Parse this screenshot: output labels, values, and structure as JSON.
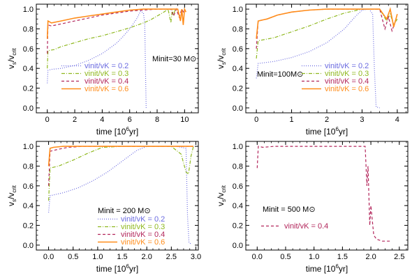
{
  "colors": {
    "v02": "#6a6ae0",
    "v03": "#8fb81f",
    "v04": "#b2245a",
    "v06": "#ff8c1a"
  },
  "chart_data": [
    {
      "type": "line",
      "ylabel": "vs/vcrit",
      "ylabel_main": "v",
      "ylabel_sub1": "s",
      "ylabel_div": "/v",
      "ylabel_sub2": "crit",
      "xlabel": "time [10^6yr]",
      "xlabel_pre": "time [10",
      "xlabel_sup": "6",
      "xlabel_post": "yr]",
      "xlim": [
        -0.8,
        11.0
      ],
      "ylim": [
        -0.05,
        1.05
      ],
      "xticks": [
        0,
        2,
        4,
        6,
        8,
        10
      ],
      "yticks": [
        0.0,
        0.2,
        0.4,
        0.6,
        0.8,
        1.0
      ],
      "mass_label": "Minit=30 M⊙",
      "series": [
        {
          "name": "vinit/vK = 0.2",
          "color_key": "v02",
          "dash": "dot",
          "x": [
            0,
            0.05,
            0.3,
            1.0,
            2.0,
            3.0,
            4.0,
            5.0,
            5.5,
            6.0,
            6.5,
            6.8,
            7.0,
            7.1,
            7.15,
            7.2
          ],
          "y": [
            0.25,
            0.38,
            0.39,
            0.4,
            0.43,
            0.48,
            0.55,
            0.65,
            0.72,
            0.8,
            0.9,
            0.98,
            0.96,
            0.85,
            0.4,
            0.0
          ]
        },
        {
          "name": "vinit/vK = 0.3",
          "color_key": "v03",
          "dash": "dashdot",
          "x": [
            0,
            0.05,
            0.5,
            1.0,
            2.0,
            3.0,
            4.0,
            5.0,
            6.0,
            7.0,
            7.5,
            8.0,
            8.5,
            8.8,
            9.0,
            9.1,
            9.2,
            9.3
          ],
          "y": [
            0.4,
            0.58,
            0.59,
            0.62,
            0.66,
            0.7,
            0.73,
            0.77,
            0.81,
            0.86,
            0.89,
            0.93,
            0.97,
            1.0,
            0.86,
            0.99,
            0.93,
            1.0
          ]
        },
        {
          "name": "vinit/vK = 0.4",
          "color_key": "v04",
          "dash": "dash",
          "x": [
            0,
            0.05,
            0.3,
            1.0,
            2.0,
            3.0,
            4.0,
            5.0,
            6.0,
            7.0,
            8.0,
            9.0,
            9.2,
            9.4,
            9.6,
            9.8,
            10.0
          ],
          "y": [
            0.55,
            0.84,
            0.83,
            0.85,
            0.88,
            0.91,
            0.94,
            0.96,
            0.98,
            0.99,
            1.0,
            1.0,
            0.93,
            1.0,
            0.92,
            1.0,
            0.95
          ]
        },
        {
          "name": "vinit/vK = 0.6",
          "color_key": "v06",
          "dash": "solid",
          "x": [
            0,
            0.05,
            0.3,
            1.0,
            2.0,
            3.0,
            4.0,
            5.0,
            6.0,
            7.0,
            8.0,
            9.0,
            9.5,
            9.7,
            9.8,
            9.9,
            10.0,
            10.1
          ],
          "y": [
            0.7,
            0.88,
            0.86,
            0.88,
            0.91,
            0.93,
            0.95,
            0.97,
            0.99,
            1.0,
            1.0,
            1.0,
            1.0,
            0.88,
            1.0,
            0.84,
            1.0,
            0.97
          ]
        }
      ]
    },
    {
      "type": "line",
      "ylabel": "vs/vcrit",
      "ylabel_main": "v",
      "ylabel_sub1": "s",
      "ylabel_div": "/v",
      "ylabel_sub2": "crit",
      "xlabel": "time [10^6yr]",
      "xlabel_pre": "time [10",
      "xlabel_sup": "6",
      "xlabel_post": "yr]",
      "xlim": [
        -0.3,
        4.3
      ],
      "ylim": [
        -0.05,
        1.05
      ],
      "xticks": [
        0,
        1,
        2,
        3,
        4
      ],
      "yticks": [
        0.0,
        0.2,
        0.4,
        0.6,
        0.8,
        1.0
      ],
      "mass_label": "Minit=100M⊙",
      "series": [
        {
          "name": "vinit/vK = 0.2",
          "color_key": "v02",
          "dash": "dot",
          "x": [
            0,
            0.05,
            0.5,
            1.0,
            1.5,
            2.0,
            2.5,
            2.8,
            3.0,
            3.2,
            3.3,
            3.35,
            3.4,
            3.5
          ],
          "y": [
            0.3,
            0.45,
            0.47,
            0.51,
            0.57,
            0.66,
            0.8,
            0.92,
            0.99,
            1.0,
            0.95,
            0.4,
            0.01,
            0.0
          ]
        },
        {
          "name": "vinit/vK = 0.3",
          "color_key": "v03",
          "dash": "dashdot",
          "x": [
            0,
            0.05,
            0.5,
            1.0,
            1.5,
            2.0,
            2.5,
            3.0,
            3.5,
            3.7,
            3.8,
            3.9,
            4.0
          ],
          "y": [
            0.5,
            0.68,
            0.71,
            0.77,
            0.83,
            0.9,
            0.96,
            1.0,
            1.0,
            0.88,
            0.95,
            0.84,
            0.9
          ]
        },
        {
          "name": "vinit/vK = 0.4",
          "color_key": "v04",
          "dash": "dash",
          "x": [
            0,
            0.05,
            0.3,
            0.6,
            1.0,
            1.5,
            2.0,
            2.5,
            3.0,
            3.5,
            3.65,
            3.75,
            3.85,
            3.95
          ],
          "y": [
            0.6,
            0.88,
            0.9,
            0.94,
            0.97,
            0.99,
            1.0,
            1.0,
            1.0,
            1.0,
            0.8,
            0.92,
            0.78,
            0.88
          ]
        },
        {
          "name": "vinit/vK = 0.6",
          "color_key": "v06",
          "dash": "solid",
          "x": [
            0,
            0.05,
            0.3,
            0.6,
            1.0,
            1.5,
            2.0,
            2.5,
            3.0,
            3.5,
            3.7,
            3.8,
            3.9,
            4.0
          ],
          "y": [
            0.7,
            0.88,
            0.9,
            0.94,
            0.97,
            0.99,
            1.0,
            1.0,
            1.0,
            1.0,
            0.9,
            1.0,
            0.82,
            0.95
          ]
        }
      ]
    },
    {
      "type": "line",
      "ylabel": "vs/vcrit",
      "ylabel_main": "v",
      "ylabel_sub1": "s",
      "ylabel_div": "/v",
      "ylabel_sub2": "crit",
      "xlabel": "time [10^6yr]",
      "xlabel_pre": "time [10",
      "xlabel_sup": "6",
      "xlabel_post": "yr]",
      "xlim": [
        -0.25,
        3.05
      ],
      "ylim": [
        -0.05,
        1.05
      ],
      "xticks": [
        0.0,
        0.5,
        1.0,
        1.5,
        2.0,
        2.5,
        3.0
      ],
      "yticks": [
        0.0,
        0.2,
        0.4,
        0.6,
        0.8,
        1.0
      ],
      "mass_label": "Minit = 200 M⊙",
      "series": [
        {
          "name": "vinit/vK = 0.2",
          "color_key": "v02",
          "dash": "dot",
          "x": [
            0,
            0.03,
            0.3,
            0.6,
            0.9,
            1.2,
            1.5,
            1.8,
            2.0,
            2.3,
            2.6,
            2.8,
            2.83,
            2.86,
            2.9
          ],
          "y": [
            0.33,
            0.5,
            0.53,
            0.58,
            0.65,
            0.74,
            0.85,
            0.96,
            1.0,
            1.0,
            1.0,
            0.98,
            0.3,
            0.03,
            0.01
          ]
        },
        {
          "name": "vinit/vK = 0.3",
          "color_key": "v03",
          "dash": "dashdot",
          "x": [
            0,
            0.03,
            0.2,
            0.5,
            0.8,
            1.1,
            1.5,
            2.0,
            2.5,
            2.7,
            2.8,
            2.85,
            2.9,
            2.95
          ],
          "y": [
            0.45,
            0.78,
            0.8,
            0.86,
            0.93,
            0.99,
            1.0,
            1.0,
            1.0,
            0.92,
            0.74,
            0.72,
            0.9,
            1.0
          ]
        },
        {
          "name": "vinit/vK = 0.4",
          "color_key": "v04",
          "dash": "dash",
          "x": [
            0,
            0.03,
            0.2,
            0.4,
            0.7,
            1.0,
            1.5,
            2.0,
            2.5,
            2.9,
            2.95
          ],
          "y": [
            0.6,
            0.95,
            0.97,
            0.99,
            1.0,
            1.0,
            1.0,
            1.0,
            1.0,
            1.0,
            1.0
          ]
        },
        {
          "name": "vinit/vK = 0.6",
          "color_key": "v06",
          "dash": "solid",
          "x": [
            0,
            0.03,
            0.1,
            0.3,
            0.6,
            1.0,
            1.5,
            2.0,
            2.5,
            2.9,
            2.95
          ],
          "y": [
            0.8,
            0.98,
            0.99,
            1.0,
            1.0,
            1.0,
            1.0,
            1.0,
            1.0,
            1.0,
            1.0
          ]
        }
      ]
    },
    {
      "type": "line",
      "ylabel": "vs/vcrit",
      "ylabel_main": "v",
      "ylabel_sub1": "s",
      "ylabel_div": "/v",
      "ylabel_sub2": "crit",
      "xlabel": "time [10^6yr]",
      "xlabel_pre": "time [10",
      "xlabel_sup": "6",
      "xlabel_post": "yr]",
      "xlim": [
        -0.2,
        2.65
      ],
      "ylim": [
        -0.05,
        1.05
      ],
      "xticks": [
        0.0,
        0.5,
        1.0,
        1.5,
        2.0,
        2.5
      ],
      "yticks": [
        0.0,
        0.2,
        0.4,
        0.6,
        0.8,
        1.0
      ],
      "mass_label": "Minit = 500 M⊙",
      "series": [
        {
          "name": "vinit/vK = 0.4",
          "color_key": "v04",
          "dash": "dash",
          "x": [
            0,
            0.02,
            0.1,
            0.3,
            0.6,
            0.9,
            1.2,
            1.5,
            1.8,
            1.9,
            1.93,
            1.95,
            1.98,
            2.0,
            2.05,
            2.1,
            2.2,
            2.35
          ],
          "y": [
            0.78,
            1.0,
            0.99,
            1.0,
            1.0,
            1.0,
            1.0,
            1.0,
            1.0,
            1.0,
            0.6,
            0.8,
            0.2,
            0.4,
            0.1,
            0.06,
            0.04,
            0.04
          ]
        }
      ]
    }
  ]
}
